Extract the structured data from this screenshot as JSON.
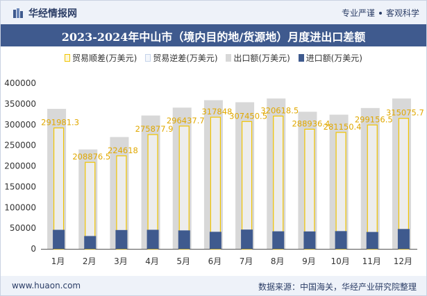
{
  "header": {
    "brand": "华经情报网",
    "tagline_1": "专业严谨",
    "tagline_2": "客观科学"
  },
  "chart_data": {
    "type": "bar",
    "title": "2023-2024年中山市（境内目的地/货源地）月度进出口差额",
    "categories": [
      "1月",
      "2月",
      "3月",
      "4月",
      "5月",
      "6月",
      "7月",
      "8月",
      "9月",
      "10月",
      "11月",
      "12月"
    ],
    "series": [
      {
        "name": "贸易顺差(万美元)",
        "values": [
          291981.3,
          208876.5,
          224618,
          275877.9,
          296437.7,
          317848,
          307450.5,
          320618.5,
          288936.4,
          281150.4,
          299156.5,
          315075.7
        ],
        "color": "#f0c400"
      },
      {
        "name": "贸易逆差(万美元)",
        "values": [
          0,
          0,
          0,
          0,
          0,
          0,
          0,
          0,
          0,
          0,
          0,
          0
        ],
        "color": "#c5d3ea"
      },
      {
        "name": "出口额(万美元)",
        "values": [
          338000,
          240000,
          270000,
          322000,
          341000,
          359000,
          354000,
          363000,
          331000,
          324000,
          340000,
          363000
        ],
        "color": "#d8d8d8"
      },
      {
        "name": "进口额(万美元)",
        "values": [
          46000,
          31000,
          45500,
          46100,
          44600,
          41200,
          46600,
          42400,
          42100,
          42900,
          40800,
          48000
        ],
        "color": "#3f5a8e"
      }
    ],
    "yticks": [
      0,
      50000,
      100000,
      150000,
      200000,
      250000,
      300000,
      350000,
      400000
    ],
    "ylim": [
      0,
      400000
    ],
    "legend_position": "top-center"
  },
  "footer": {
    "website": "www.huaon.com",
    "source": "数据来源：中国海关，华经产业研究院整理"
  }
}
